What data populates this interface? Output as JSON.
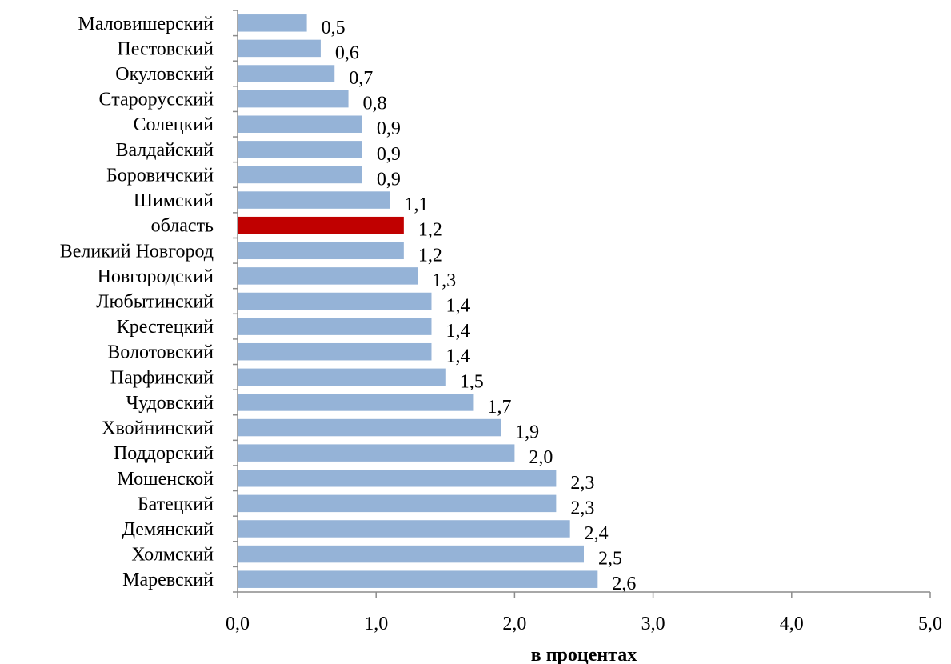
{
  "chart_data": {
    "type": "bar",
    "orientation": "horizontal",
    "categories": [
      "Маловишерский",
      "Пестовский",
      "Окуловский",
      "Старорусский",
      "Солецкий",
      "Валдайский",
      "Боровичский",
      "Шимский",
      "область",
      "Великий Новгород",
      "Новгородский",
      "Любытинский",
      "Крестецкий",
      "Волотовский",
      "Парфинский",
      "Чудовский",
      "Хвойнинский",
      "Поддорский",
      "Мошенской",
      "Батецкий",
      "Демянский",
      "Холмский",
      "Маревский"
    ],
    "values": [
      0.5,
      0.6,
      0.7,
      0.8,
      0.9,
      0.9,
      0.9,
      1.1,
      1.2,
      1.2,
      1.3,
      1.4,
      1.4,
      1.4,
      1.5,
      1.7,
      1.9,
      2.0,
      2.3,
      2.3,
      2.4,
      2.5,
      2.6
    ],
    "value_labels": [
      "0,5",
      "0,6",
      "0,7",
      "0,8",
      "0,9",
      "0,9",
      "0,9",
      "1,1",
      "1,2",
      "1,2",
      "1,3",
      "1,4",
      "1,4",
      "1,4",
      "1,5",
      "1,7",
      "1,9",
      "2,0",
      "2,3",
      "2,3",
      "2,4",
      "2,5",
      "2,6"
    ],
    "highlight_category": "область",
    "xlim": [
      0,
      5
    ],
    "x_ticks": [
      0,
      1,
      2,
      3,
      4,
      5
    ],
    "x_tick_labels": [
      "0,0",
      "1,0",
      "2,0",
      "3,0",
      "4,0",
      "5,0"
    ],
    "xlabel": "в процентах",
    "ylabel": "",
    "title": "",
    "grid": false,
    "legend": "none",
    "colors": {
      "bar": "#95b3d7",
      "highlight": "#c00000",
      "axis": "#8c8c8c",
      "text": "#000000"
    }
  }
}
